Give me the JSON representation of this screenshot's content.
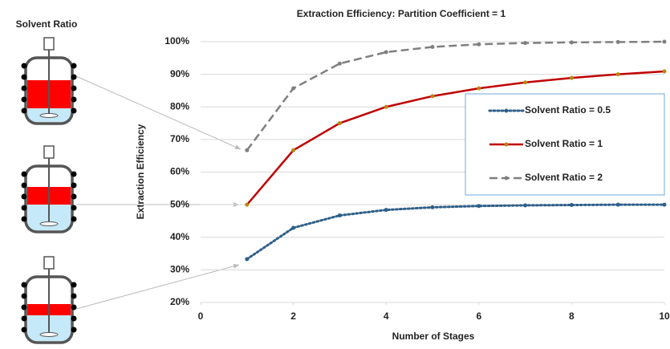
{
  "chart_data": {
    "type": "line",
    "title": "Extraction Efficiency: Partition Coefficient = 1",
    "side_label": "Solvent Ratio",
    "x_label": "Number of Stages",
    "y_label": "Extraction Efficiency",
    "x": [
      1,
      2,
      3,
      4,
      5,
      6,
      7,
      8,
      9,
      10
    ],
    "series": [
      {
        "name": "Solvent Ratio = 0.5",
        "color": "#2e5f8a",
        "style": "dotted",
        "marker_color": "#2e5f8a",
        "values": [
          33.3,
          42.9,
          46.7,
          48.4,
          49.2,
          49.6,
          49.8,
          49.9,
          50.0,
          50.0
        ]
      },
      {
        "name": "Solvent Ratio = 1",
        "color": "#c00000",
        "style": "solid",
        "marker_color": "#b8860b",
        "values": [
          50.0,
          66.7,
          75.0,
          80.0,
          83.3,
          85.7,
          87.5,
          88.9,
          90.0,
          90.9
        ]
      },
      {
        "name": "Solvent Ratio = 2",
        "color": "#7f7f7f",
        "style": "dashed",
        "marker_color": "#7f7f7f",
        "values": [
          66.7,
          85.7,
          93.3,
          96.8,
          98.4,
          99.2,
          99.6,
          99.8,
          99.9,
          100.0
        ]
      }
    ],
    "xlim": [
      0,
      10
    ],
    "xticks": [
      0,
      2,
      4,
      6,
      8,
      10
    ],
    "ylim": [
      20,
      100
    ],
    "yticks": [
      {
        "value": 20,
        "label": "20%"
      },
      {
        "value": 30,
        "label": "30%"
      },
      {
        "value": 40,
        "label": "40%"
      },
      {
        "value": 50,
        "label": "50%"
      },
      {
        "value": 60,
        "label": "60%"
      },
      {
        "value": 70,
        "label": "70%"
      },
      {
        "value": 80,
        "label": "80%"
      },
      {
        "value": 90,
        "label": "90%"
      },
      {
        "value": 100,
        "label": "100%"
      }
    ],
    "grid": true,
    "legend": "right"
  }
}
